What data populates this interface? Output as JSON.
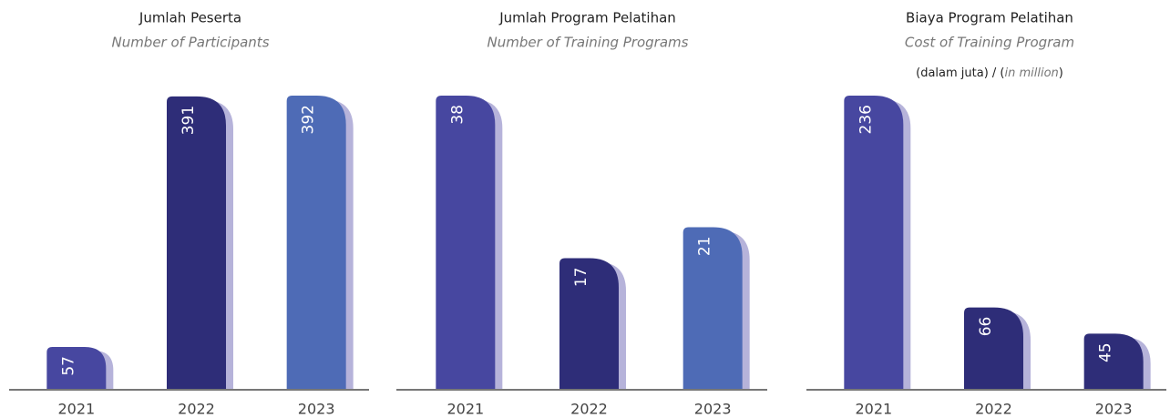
{
  "chart_data": [
    {
      "type": "bar",
      "title": "Jumlah Peserta",
      "subtitle": "Number of Participants",
      "categories": [
        "2021",
        "2022",
        "2023"
      ],
      "values": [
        57,
        391,
        392
      ],
      "colors": [
        "#4747a0",
        "#2e2d78",
        "#4e6bb6"
      ]
    },
    {
      "type": "bar",
      "title": "Jumlah Program Pelatihan",
      "subtitle": "Number of Training Programs",
      "categories": [
        "2021",
        "2022",
        "2023"
      ],
      "values": [
        38,
        17,
        21
      ],
      "colors": [
        "#4747a0",
        "#2e2d78",
        "#4e6bb6"
      ]
    },
    {
      "type": "bar",
      "title": "Biaya Program Pelatihan",
      "subtitle": "Cost of Training Program",
      "note_parts": [
        "(dalam juta) / (",
        "in million",
        ")"
      ],
      "categories": [
        "2021",
        "2022",
        "2023"
      ],
      "values": [
        236,
        66,
        45
      ],
      "colors": [
        "#4747a0",
        "#2e2d78",
        "#2e2d78"
      ]
    }
  ]
}
